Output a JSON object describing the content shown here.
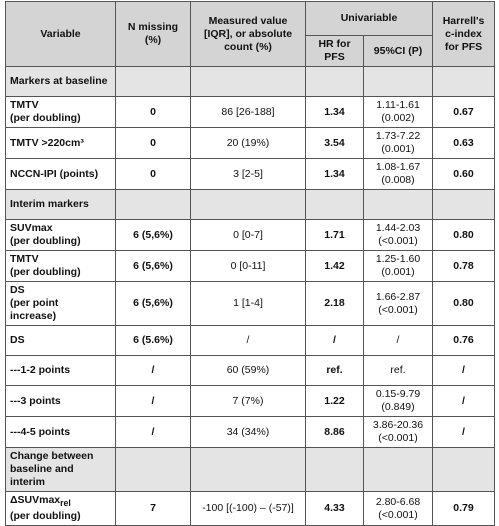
{
  "header": {
    "variable": "Variable",
    "n_missing": "N missing (%)",
    "measured": "Measured value [IQR], or absolute count (%)",
    "univariable": "Univariable",
    "hr": "HR for PFS",
    "ci": "95%CI (P)",
    "cindex": "Harrell's c-index for PFS"
  },
  "rows": [
    [
      "Markers at baseline"
    ],
    [
      "TMTV\n(per doubling)",
      "0",
      "86 [26-188]",
      "1.34",
      "1.11-1.61\n(0.002)",
      "0.67"
    ],
    [
      "TMTV >220cm³",
      "0",
      "20 (19%)",
      "3.54",
      "1.73-7.22\n(0.001)",
      "0.63"
    ],
    [
      "NCCN-IPI (points)",
      "0",
      "3 [2-5]",
      "1.34",
      "1.08-1.67\n(0.008)",
      "0.60"
    ],
    [
      "Interim markers"
    ],
    [
      "SUVmax\n(per doubling)",
      "6 (5,6%)",
      "0 [0-7]",
      "1.71",
      "1.44-2.03\n(<0.001)",
      "0.80"
    ],
    [
      "TMTV\n(per doubling)",
      "6 (5,6%)",
      "0 [0-11]",
      "1.42",
      "1.25-1.60\n(0.001)",
      "0.78"
    ],
    [
      "DS\n(per point\nincrease)",
      "6 (5,6%)",
      "1 [1-4]",
      "2.18",
      "1.66-2.87\n(<0.001)",
      "0.80"
    ],
    [
      "DS",
      "6 (5.6%)",
      "/",
      "/",
      "/",
      "0.76"
    ],
    [
      "---1-2 points",
      "/",
      "60 (59%)",
      "ref.",
      "ref.",
      "/"
    ],
    [
      "---3 points",
      "/",
      "7 (7%)",
      "1.22",
      "0.15-9.79\n(0.849)",
      "/"
    ],
    [
      "---4-5 points",
      "/",
      "34 (34%)",
      "8.86",
      "3.86-20.36\n(<0.001)",
      "/"
    ],
    [
      "Change between\nbaseline and\ninterim"
    ],
    [
      {
        "main": "ΔSUVmax",
        "sub": "rel",
        "rest": "(per doubling)"
      },
      "7",
      "-100 [(-100) – (-57)]",
      "4.33",
      "2.80-6.68\n(<0.001)",
      "0.79"
    ]
  ]
}
